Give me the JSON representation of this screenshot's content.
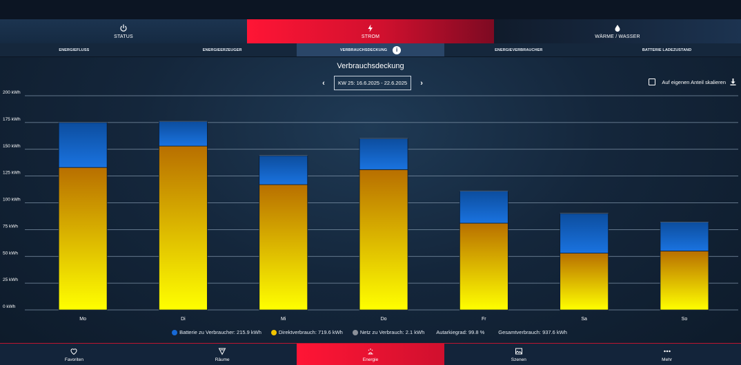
{
  "main_tabs": [
    {
      "label": "STATUS",
      "icon": "power-icon"
    },
    {
      "label": "STROM",
      "icon": "lightning-icon"
    },
    {
      "label": "WÄRME / WASSER",
      "icon": "water-drop-icon"
    }
  ],
  "sub_tabs": [
    "ENERGIEFLUSS",
    "ENERGIEERZEUGER",
    "VERBRAUCHSDECKUNG",
    "ENERGIEVERBRAUCHER",
    "BATTERIE LADEZUSTAND"
  ],
  "page_title": "Verbrauchsdeckung",
  "week_label": "KW 25: 16.6.2025 - 22.6.2025",
  "scale_label": "Auf eigenen Anteil skalieren",
  "legend": {
    "battery": "Batterie zu Verbraucher: 215.9 kWh",
    "direct": "Direktverbrauch: 719.6 kWh",
    "grid": "Netz zu Verbrauch: 2.1 kWh",
    "autarky": "Autarkiegrad: 99.8 %",
    "total": "Gesamtverbrauch: 937.6 kWh"
  },
  "colors": {
    "accent": "#e8102f",
    "battery": "#1769d6",
    "direct_top": "#b86f00",
    "direct_bottom": "#ffff00",
    "grid": "#8a9099"
  },
  "bottom_nav": [
    {
      "label": "Favoriten",
      "icon": "heart-icon"
    },
    {
      "label": "Räume",
      "icon": "rooms-icon"
    },
    {
      "label": "Energie",
      "icon": "energy-icon"
    },
    {
      "label": "Szenen",
      "icon": "image-icon"
    },
    {
      "label": "Mehr",
      "icon": "more-icon"
    }
  ],
  "chart_data": {
    "type": "bar",
    "stacked": true,
    "categories": [
      "Mo",
      "Di",
      "Mi",
      "Do",
      "Fr",
      "Sa",
      "So"
    ],
    "series": [
      {
        "name": "Direktverbrauch",
        "values": [
          133,
          153,
          117,
          131,
          81,
          53,
          55
        ]
      },
      {
        "name": "Batterie zu Verbraucher",
        "values": [
          42,
          23,
          27,
          29,
          30,
          37,
          27
        ]
      },
      {
        "name": "Netz zu Verbrauch",
        "values": [
          0.3,
          0.3,
          0.3,
          0.3,
          0.3,
          0.3,
          0.3
        ]
      }
    ],
    "y_ticks": [
      "0 kWh",
      "25 kWh",
      "50 kWh",
      "75 kWh",
      "100 kWh",
      "125 kWh",
      "150 kWh",
      "175 kWh",
      "200 kWh"
    ],
    "ylim": [
      0,
      200
    ],
    "grid": true
  }
}
